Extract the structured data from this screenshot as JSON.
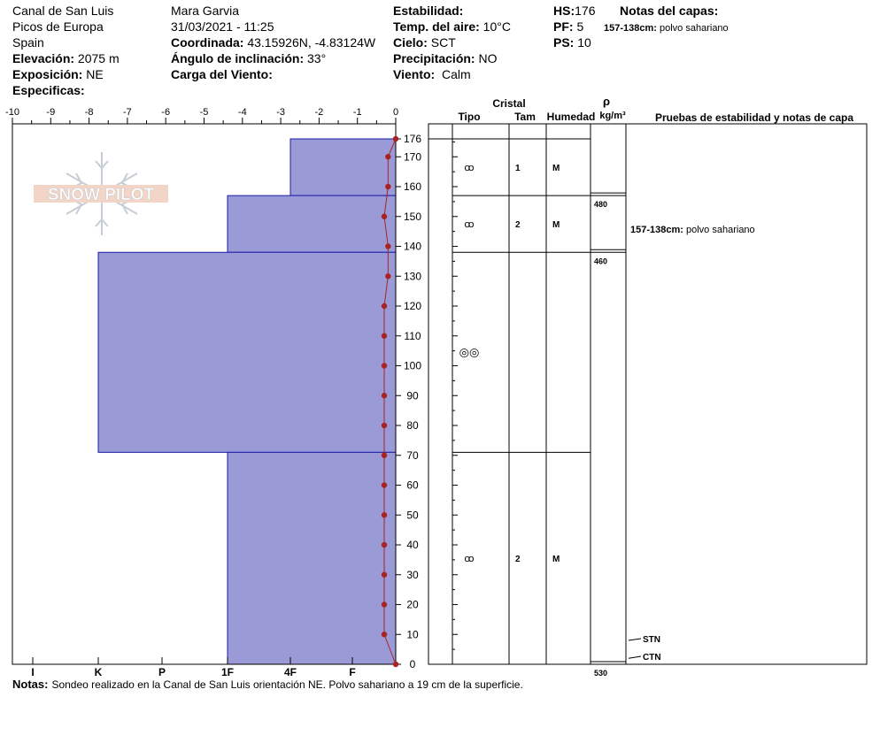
{
  "header": {
    "location_name": "Canal de San Luis",
    "range": "Picos de Europa",
    "country": "Spain",
    "elevation_label": "Elevación:",
    "elevation": "2075 m",
    "aspect_label": "Exposición:",
    "aspect": "NE",
    "specifics_label": "Especificas:",
    "observer": "Mara Garvia",
    "datetime": "31/03/2021 - 11:25",
    "coord_label": "Coordinada:",
    "coord": "43.15926N, -4.83124W",
    "slope_label": "Ángulo de inclinación:",
    "slope": "33°",
    "wind_load_label": "Carga del Viento:",
    "stability_label": "Estabilidad:",
    "air_temp_label": "Temp. del aire:",
    "air_temp": "10°C",
    "sky_label": "Cielo:",
    "sky": "SCT",
    "precip_label": "Precipitación:",
    "precip": "NO",
    "wind_label": "Viento:",
    "wind": "Calm",
    "hs_label": "HS:",
    "hs": "176",
    "pf_label": "PF:",
    "pf": "5",
    "ps_label": "PS:",
    "ps": "10",
    "layer_notes_label": "Notas del capas:",
    "layer_note_range": "157-138cm:",
    "layer_note_text": "polvo sahariano"
  },
  "logo": {
    "text": "SNOW PILOT"
  },
  "notes": {
    "label": "Notas:",
    "text": "Sondeo realizado en la Canal de San Luis orientación NE. Polvo sahariano a 19 cm de la superficie."
  },
  "columns": {
    "crystal": "Cristal",
    "type": "Tipo",
    "size": "Tam",
    "moisture": "Humedad",
    "rho": "ρ",
    "density_unit": "kg/m³",
    "tests": "Pruebas de estabilidad y notas de capa"
  },
  "colors": {
    "hardness_fill": "#9a9ad6",
    "hardness_stroke": "#1c1ca8",
    "temperature": "#aa2222"
  },
  "chart_data": {
    "type": "area",
    "temp_axis": {
      "ticks": [
        -10,
        -9,
        -8,
        -7,
        -6,
        -5,
        -4,
        -3,
        -2,
        -1,
        0
      ],
      "range": [
        -10,
        0
      ]
    },
    "height_axis": {
      "range": [
        0,
        176
      ],
      "ticks": [
        0,
        10,
        20,
        30,
        40,
        50,
        60,
        70,
        80,
        90,
        100,
        110,
        120,
        130,
        140,
        150,
        160,
        170,
        176
      ]
    },
    "hardness_axis": {
      "labels": [
        "I",
        "K",
        "P",
        "1F",
        "4F",
        "F"
      ]
    },
    "hardness_profile": [
      {
        "top": 176,
        "bottom": 157,
        "hardness": "4F"
      },
      {
        "top": 157,
        "bottom": 138,
        "hardness": "1F"
      },
      {
        "top": 138,
        "bottom": 71,
        "hardness": "K"
      },
      {
        "top": 71,
        "bottom": 0,
        "hardness": "1F"
      }
    ],
    "temperature_profile": [
      {
        "h": 176,
        "t": 0.0
      },
      {
        "h": 170,
        "t": -0.2
      },
      {
        "h": 160,
        "t": -0.2
      },
      {
        "h": 150,
        "t": -0.3
      },
      {
        "h": 140,
        "t": -0.2
      },
      {
        "h": 130,
        "t": -0.2
      },
      {
        "h": 120,
        "t": -0.3
      },
      {
        "h": 110,
        "t": -0.3
      },
      {
        "h": 100,
        "t": -0.3
      },
      {
        "h": 90,
        "t": -0.3
      },
      {
        "h": 80,
        "t": -0.3
      },
      {
        "h": 70,
        "t": -0.3
      },
      {
        "h": 60,
        "t": -0.3
      },
      {
        "h": 50,
        "t": -0.3
      },
      {
        "h": 40,
        "t": -0.3
      },
      {
        "h": 30,
        "t": -0.3
      },
      {
        "h": 20,
        "t": -0.3
      },
      {
        "h": 10,
        "t": -0.3
      },
      {
        "h": 0,
        "t": 0.0
      }
    ],
    "layers": [
      {
        "top": 176,
        "bottom": 157,
        "grain": "rounding-faceted",
        "size": "1",
        "moisture": "M"
      },
      {
        "top": 157,
        "bottom": 138,
        "grain": "rounding-faceted",
        "size": "2",
        "moisture": "M"
      },
      {
        "top": 138,
        "bottom": 71,
        "grain": "melt-forms",
        "size": "",
        "moisture": ""
      },
      {
        "top": 71,
        "bottom": 0,
        "grain": "rounding-faceted",
        "size": "2",
        "moisture": "M"
      }
    ],
    "density": [
      {
        "h": 157,
        "value": "480"
      },
      {
        "h": 138,
        "value": "460"
      },
      {
        "h": 0,
        "value": "530"
      }
    ],
    "layer_comments": [
      {
        "h": 157,
        "range": "157-138cm:",
        "text": "polvo sahariano"
      }
    ],
    "stability_tests": [
      {
        "h": 8,
        "label": "STN"
      },
      {
        "h": 2,
        "label": "CTN"
      }
    ]
  }
}
